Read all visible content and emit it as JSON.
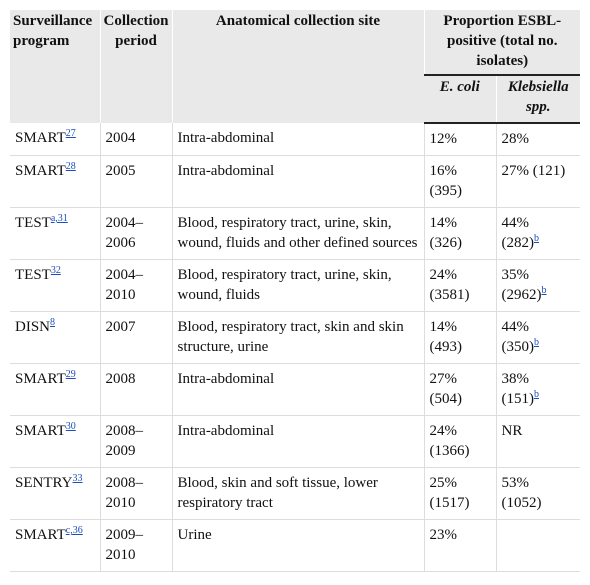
{
  "table": {
    "headers": [
      "Surveillance program",
      "Collection period",
      "Anatomical collection site",
      "Proportion ESBL-positive (total no. isolates)"
    ],
    "subheaders": [
      "E. coli",
      "Klebsiella spp."
    ],
    "rows": [
      {
        "program": "SMART",
        "program_ref": "27",
        "period": "2004",
        "site": "Intra-abdominal",
        "e_coli": "12%",
        "klebsiella": "28%"
      },
      {
        "program": "SMART",
        "program_ref": "28",
        "period": "2005",
        "site": "Intra-abdominal",
        "e_coli": "16% (395)",
        "klebsiella": "27% (121)"
      },
      {
        "program": "TEST",
        "program_ref": "a,31",
        "period": "2004–2006",
        "site": "Blood, respiratory tract, urine, skin, wound, fluids and other defined sources",
        "e_coli": "14% (326)",
        "klebsiella": "44% (282)",
        "klebsiella_ref": "b"
      },
      {
        "program": "TEST",
        "program_ref": "32",
        "period": "2004–2010",
        "site": "Blood, respiratory tract, urine, skin, wound, fluids",
        "e_coli": "24% (3581)",
        "klebsiella": "35% (2962)",
        "klebsiella_ref": "b"
      },
      {
        "program": "DISN",
        "program_ref": "8",
        "period": "2007",
        "site": "Blood, respiratory tract, skin and skin structure, urine",
        "e_coli": "14% (493)",
        "klebsiella": "44% (350)",
        "klebsiella_ref": "b"
      },
      {
        "program": "SMART",
        "program_ref": "29",
        "period": "2008",
        "site": "Intra-abdominal",
        "e_coli": "27% (504)",
        "klebsiella": "38% (151)",
        "klebsiella_ref": "b"
      },
      {
        "program": "SMART",
        "program_ref": "30",
        "period": "2008–2009",
        "site": "Intra-abdominal",
        "e_coli": "24% (1366)",
        "klebsiella": "NR"
      },
      {
        "program": "SENTRY",
        "program_ref": "33",
        "period": "2008–2010",
        "site": "Blood, skin and soft tissue, lower respiratory tract",
        "e_coli": "25% (1517)",
        "klebsiella": "53% (1052)"
      },
      {
        "program": "SMART",
        "program_ref": "c,36",
        "period": "2009–2010",
        "site": "Urine",
        "e_coli": "23%"
      }
    ]
  }
}
